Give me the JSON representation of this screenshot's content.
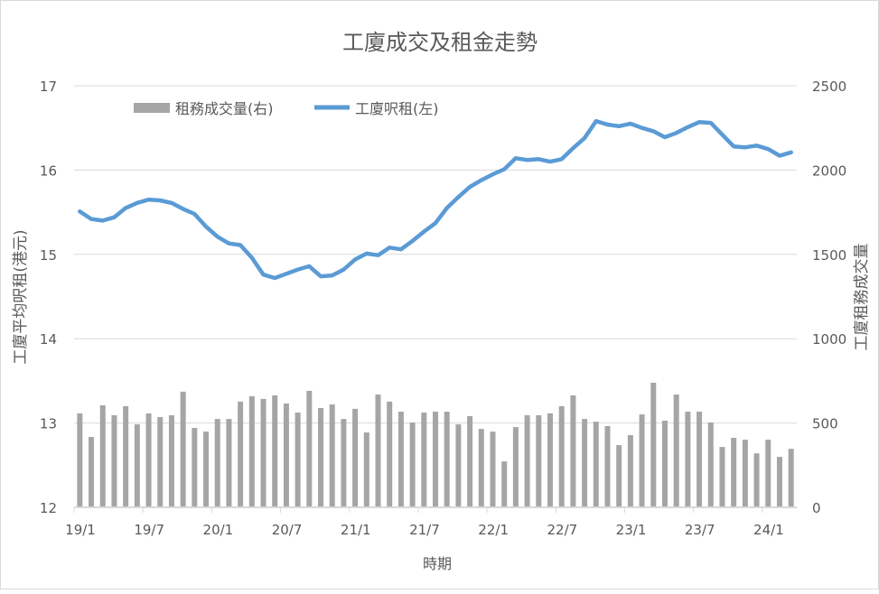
{
  "chart_data": {
    "type": "bar+line",
    "title": "工廈成交及租金走勢",
    "xlabel": "時期",
    "ylabel_left": "工廈平均呎租(港元)",
    "ylabel_right": "工廈租務成交量",
    "ylim_left": [
      12,
      17
    ],
    "yticks_left": [
      "12",
      "13",
      "14",
      "15",
      "16",
      "17"
    ],
    "ylim_right": [
      0,
      2500
    ],
    "yticks_right": [
      "0",
      "500",
      "1000",
      "1500",
      "2000",
      "2500"
    ],
    "xtick_labels": [
      "19/1",
      "19/7",
      "20/1",
      "20/7",
      "21/1",
      "21/7",
      "22/1",
      "22/7",
      "23/1",
      "23/7",
      "24/1"
    ],
    "grid": true,
    "legend_position": "top-left",
    "colors": {
      "bars": "#a5a5a5",
      "line": "#5b9bd5",
      "grid": "#d9d9d9"
    },
    "series": [
      {
        "name": "租務成交量(右)",
        "type": "bar",
        "axis": "right",
        "values": [
          557,
          417,
          605,
          546,
          600,
          492,
          557,
          535,
          546,
          686,
          471,
          449,
          524,
          524,
          627,
          659,
          643,
          664,
          616,
          562,
          691,
          589,
          610,
          524,
          584,
          444,
          669,
          627,
          567,
          503,
          562,
          567,
          567,
          492,
          541,
          465,
          449,
          272,
          476,
          546,
          546,
          557,
          600,
          664,
          524,
          508,
          482,
          369,
          428,
          551,
          739,
          514,
          669,
          567,
          567,
          503,
          358,
          412,
          401,
          320,
          401,
          299,
          347
        ]
      },
      {
        "name": "工廈呎租(左)",
        "type": "line",
        "axis": "left",
        "values": [
          15.51,
          15.42,
          15.4,
          15.44,
          15.55,
          15.61,
          15.65,
          15.64,
          15.61,
          15.54,
          15.48,
          15.33,
          15.21,
          15.13,
          15.11,
          14.96,
          14.76,
          14.72,
          14.77,
          14.82,
          14.86,
          14.74,
          14.75,
          14.82,
          14.94,
          15.01,
          14.99,
          15.08,
          15.06,
          15.16,
          15.27,
          15.37,
          15.55,
          15.68,
          15.8,
          15.88,
          15.95,
          16.01,
          16.14,
          16.12,
          16.13,
          16.1,
          16.13,
          16.26,
          16.38,
          16.58,
          16.54,
          16.52,
          16.55,
          16.5,
          16.46,
          16.39,
          16.44,
          16.51,
          16.57,
          16.56,
          16.42,
          16.28,
          16.27,
          16.29,
          16.25,
          16.17,
          16.21
        ]
      }
    ]
  }
}
